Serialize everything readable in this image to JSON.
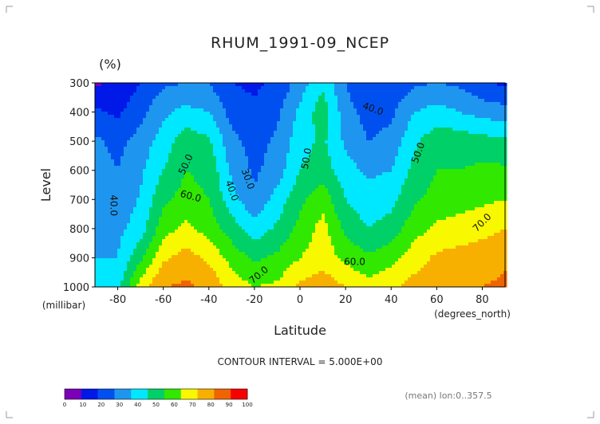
{
  "chart_data": {
    "type": "heatmap",
    "title": "RHUM_1991-09_NCEP",
    "units": "(%)",
    "xlabel": "Latitude",
    "ylabel": "Level",
    "x_unit_label": "(degrees_north)",
    "y_unit_label": "(millibar)",
    "xlim": [
      -90,
      90
    ],
    "ylim": [
      1000,
      300
    ],
    "x_ticks": [
      "-80",
      "-60",
      "-40",
      "-20",
      "0",
      "20",
      "40",
      "60",
      "80"
    ],
    "x_tick_values": [
      -80,
      -60,
      -40,
      -20,
      0,
      20,
      40,
      60,
      80
    ],
    "y_ticks": [
      "300",
      "400",
      "500",
      "600",
      "700",
      "800",
      "900",
      "1000"
    ],
    "y_tick_values": [
      300,
      400,
      500,
      600,
      700,
      800,
      900,
      1000
    ],
    "contour_interval_text": "CONTOUR INTERVAL = 5.000E+00",
    "footer_note": "(mean) lon:0..357.5",
    "lat": [
      -90,
      -80,
      -70,
      -60,
      -50,
      -40,
      -30,
      -20,
      -10,
      0,
      10,
      20,
      30,
      40,
      50,
      60,
      70,
      80,
      90
    ],
    "levels": [
      300,
      400,
      500,
      600,
      700,
      800,
      900,
      1000
    ],
    "values": [
      [
        8,
        12,
        20,
        28,
        30,
        30,
        20,
        18,
        22,
        35,
        48,
        30,
        20,
        22,
        28,
        30,
        28,
        22,
        18
      ],
      [
        22,
        18,
        27,
        38,
        43,
        40,
        26,
        22,
        28,
        42,
        56,
        34,
        26,
        28,
        40,
        44,
        40,
        36,
        34
      ],
      [
        32,
        27,
        34,
        45,
        56,
        52,
        33,
        26,
        32,
        46,
        52,
        38,
        30,
        33,
        48,
        56,
        56,
        54,
        52
      ],
      [
        34,
        30,
        38,
        50,
        60,
        57,
        38,
        28,
        35,
        50,
        55,
        44,
        38,
        40,
        53,
        60,
        60,
        62,
        62
      ],
      [
        36,
        33,
        41,
        58,
        64,
        60,
        44,
        32,
        44,
        58,
        66,
        50,
        44,
        47,
        58,
        64,
        66,
        68,
        70
      ],
      [
        37,
        37,
        45,
        66,
        72,
        66,
        55,
        44,
        52,
        63,
        74,
        57,
        50,
        54,
        66,
        72,
        74,
        77,
        80
      ],
      [
        40,
        40,
        58,
        78,
        84,
        78,
        66,
        58,
        62,
        70,
        76,
        67,
        62,
        66,
        75,
        82,
        84,
        85,
        88
      ],
      [
        44,
        46,
        75,
        90,
        92,
        88,
        76,
        70,
        72,
        82,
        86,
        80,
        74,
        78,
        84,
        88,
        88,
        90,
        92
      ]
    ],
    "color_levels": [
      0,
      10,
      20,
      30,
      40,
      50,
      60,
      70,
      80,
      90,
      100
    ],
    "colorbar_labels": [
      "0",
      "10",
      "20",
      "30",
      "40",
      "50",
      "60",
      "70",
      "80",
      "90",
      "100"
    ],
    "colors": [
      "#7c00b8",
      "#0018e8",
      "#0050f0",
      "#1e96f0",
      "#00e8ff",
      "#00d068",
      "#30e800",
      "#f8f800",
      "#f8b000",
      "#f06400",
      "#f80000"
    ],
    "contour_labels": [
      {
        "text": "40.0",
        "lat": -82,
        "level": 720,
        "angle": 90
      },
      {
        "text": "50.0",
        "lat": -50,
        "level": 580,
        "angle": -65
      },
      {
        "text": "60.0",
        "lat": -48,
        "level": 690,
        "angle": 15
      },
      {
        "text": "40.0",
        "lat": -30,
        "level": 670,
        "angle": 70
      },
      {
        "text": "30.0",
        "lat": -23,
        "level": 630,
        "angle": 70
      },
      {
        "text": "70.0",
        "lat": -18,
        "level": 960,
        "angle": -40
      },
      {
        "text": "50.0",
        "lat": 3,
        "level": 560,
        "angle": -80
      },
      {
        "text": "40.0",
        "lat": 32,
        "level": 390,
        "angle": 20
      },
      {
        "text": "60.0",
        "lat": 24,
        "level": 915,
        "angle": 0
      },
      {
        "text": "50.0",
        "lat": 52,
        "level": 540,
        "angle": -70
      },
      {
        "text": "70.0",
        "lat": 80,
        "level": 780,
        "angle": -45
      }
    ]
  }
}
